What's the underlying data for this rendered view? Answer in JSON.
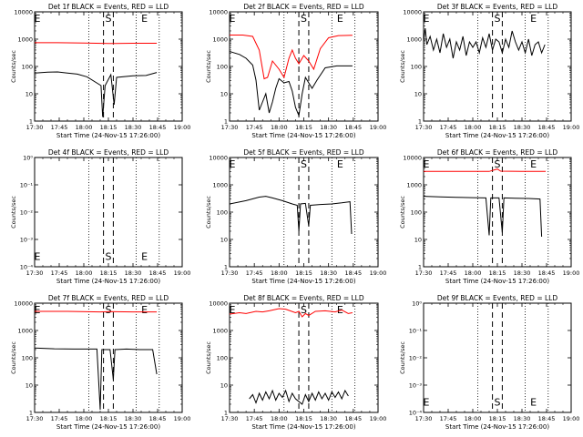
{
  "panel_titles": [
    "Det 1f BLACK = Events, RED = LLD",
    "Det 2f BLACK = Events, RED = LLD",
    "Det 3f BLACK = Events, RED = LLD",
    "Det 4f BLACK = Events, RED = LLD",
    "Det 5f BLACK = Events, RED = LLD",
    "Det 6f BLACK = Events, RED = LLD",
    "Det 7f BLACK = Events, RED = LLD",
    "Det 8f BLACK = Events, RED = LLD",
    "Det 9f BLACK = Events, RED = LLD"
  ],
  "chart_data": {
    "type": "line",
    "layout": "3x3 grid",
    "xlabel": "Start Time (24-Nov-15 17:26:00)",
    "ylabel": "Counts/sec",
    "x_ticks": [
      "17:30",
      "17:45",
      "18:00",
      "18:15",
      "18:30",
      "18:45",
      "19:00"
    ],
    "x_tick_minutes": [
      0,
      15,
      30,
      45,
      60,
      75,
      90
    ],
    "xlim_minutes": [
      0,
      90
    ],
    "y_ticks_counts": [
      "1",
      "10",
      "100",
      "1000",
      "10000"
    ],
    "y_ticks_empty": [
      "10⁰",
      "10⁻¹",
      "10⁻²",
      "10⁻³",
      "10⁻⁴"
    ],
    "vertical_lines": {
      "solid_labels": [
        "S",
        "E"
      ],
      "dashed_at_minutes": [
        42,
        48
      ],
      "dotted_at_minutes": [
        0,
        33,
        62,
        76
      ]
    },
    "series_colors": {
      "events": "#000000",
      "lld": "#ff0000"
    },
    "panels": [
      {
        "det": "1f",
        "log_range": [
          0,
          4
        ],
        "marker_S": 45,
        "marker_E": 67,
        "events": [
          [
            0,
            1.76
          ],
          [
            8,
            1.79
          ],
          [
            14,
            1.8
          ],
          [
            20,
            1.76
          ],
          [
            26,
            1.72
          ],
          [
            32,
            1.62
          ],
          [
            40.5,
            1.3
          ],
          [
            41.5,
            0.15
          ],
          [
            43,
            1.3
          ],
          [
            46.5,
            1.7
          ],
          [
            48.5,
            0.6
          ],
          [
            50,
            1.6
          ],
          [
            60,
            1.66
          ],
          [
            68,
            1.67
          ],
          [
            74.5,
            1.78
          ]
        ],
        "lld": [
          [
            0,
            2.87
          ],
          [
            14,
            2.87
          ],
          [
            30,
            2.86
          ],
          [
            45,
            2.84
          ],
          [
            60,
            2.85
          ],
          [
            74.5,
            2.85
          ]
        ]
      },
      {
        "det": "2f",
        "log_range": [
          0,
          4
        ],
        "marker_S": 45,
        "marker_E": 67,
        "events": [
          [
            0,
            2.55
          ],
          [
            6,
            2.44
          ],
          [
            10,
            2.3
          ],
          [
            14,
            2.05
          ],
          [
            16,
            1.5
          ],
          [
            18,
            0.4
          ],
          [
            20,
            0.7
          ],
          [
            22,
            1.0
          ],
          [
            24,
            0.3
          ],
          [
            26,
            0.7
          ],
          [
            28,
            1.2
          ],
          [
            30,
            1.55
          ],
          [
            33,
            1.4
          ],
          [
            36,
            1.45
          ],
          [
            38,
            1.1
          ],
          [
            40,
            0.5
          ],
          [
            42,
            0.2
          ],
          [
            44,
            1.0
          ],
          [
            46,
            1.6
          ],
          [
            48,
            1.4
          ],
          [
            50,
            1.2
          ],
          [
            53,
            1.5
          ],
          [
            58,
            1.95
          ],
          [
            65,
            2.02
          ],
          [
            74.5,
            2.02
          ]
        ],
        "lld": [
          [
            0,
            3.15
          ],
          [
            8,
            3.15
          ],
          [
            14,
            3.1
          ],
          [
            18,
            2.6
          ],
          [
            21,
            1.55
          ],
          [
            23,
            1.6
          ],
          [
            26,
            2.2
          ],
          [
            30,
            1.9
          ],
          [
            33,
            1.6
          ],
          [
            36,
            2.3
          ],
          [
            38,
            2.6
          ],
          [
            40,
            2.3
          ],
          [
            42,
            2.1
          ],
          [
            45,
            2.4
          ],
          [
            48,
            2.2
          ],
          [
            51,
            1.9
          ],
          [
            55,
            2.65
          ],
          [
            60,
            3.05
          ],
          [
            66,
            3.13
          ],
          [
            74.5,
            3.14
          ]
        ]
      },
      {
        "det": "3f",
        "log_range": [
          0,
          4
        ],
        "marker_S": 45,
        "marker_E": 67,
        "events": [
          [
            0,
            2.9
          ],
          [
            1,
            3.4
          ],
          [
            2,
            2.8
          ],
          [
            4,
            3.1
          ],
          [
            6,
            2.6
          ],
          [
            8,
            3.0
          ],
          [
            10,
            2.5
          ],
          [
            12,
            3.2
          ],
          [
            14,
            2.7
          ],
          [
            16,
            3.0
          ],
          [
            18,
            2.3
          ],
          [
            20,
            2.9
          ],
          [
            22,
            2.6
          ],
          [
            24,
            3.1
          ],
          [
            26,
            2.4
          ],
          [
            28,
            2.9
          ],
          [
            30,
            2.7
          ],
          [
            32,
            2.9
          ],
          [
            34,
            2.5
          ],
          [
            36,
            3.05
          ],
          [
            38,
            2.7
          ],
          [
            40,
            3.2
          ],
          [
            42,
            2.6
          ],
          [
            44,
            3.0
          ],
          [
            46,
            2.9
          ],
          [
            48,
            2.5
          ],
          [
            50,
            3.0
          ],
          [
            52,
            2.7
          ],
          [
            54,
            3.3
          ],
          [
            56,
            2.9
          ],
          [
            58,
            2.6
          ],
          [
            60,
            2.9
          ],
          [
            62,
            2.5
          ],
          [
            64,
            3.0
          ],
          [
            66,
            2.4
          ],
          [
            68,
            2.8
          ],
          [
            70,
            2.9
          ],
          [
            72,
            2.5
          ],
          [
            74,
            2.8
          ]
        ],
        "lld": []
      },
      {
        "det": "4f",
        "log_range": [
          -4,
          0
        ],
        "marker_S": 45,
        "marker_E": 67,
        "events": [],
        "lld": []
      },
      {
        "det": "5f",
        "log_range": [
          0,
          4
        ],
        "marker_S": 45,
        "marker_E": 67,
        "events": [
          [
            0,
            2.3
          ],
          [
            10,
            2.42
          ],
          [
            18,
            2.55
          ],
          [
            22,
            2.58
          ],
          [
            26,
            2.52
          ],
          [
            32,
            2.42
          ],
          [
            38,
            2.3
          ],
          [
            41,
            2.25
          ],
          [
            42,
            1.3
          ],
          [
            43,
            2.3
          ],
          [
            46,
            2.32
          ],
          [
            48,
            1.5
          ],
          [
            49,
            2.25
          ],
          [
            55,
            2.28
          ],
          [
            62,
            2.3
          ],
          [
            68,
            2.34
          ],
          [
            73,
            2.38
          ],
          [
            74,
            1.2
          ]
        ],
        "lld": []
      },
      {
        "det": "6f",
        "log_range": [
          0,
          4
        ],
        "marker_S": 45,
        "marker_E": 67,
        "events": [
          [
            0,
            2.58
          ],
          [
            10,
            2.56
          ],
          [
            20,
            2.54
          ],
          [
            30,
            2.53
          ],
          [
            38,
            2.52
          ],
          [
            40,
            1.15
          ],
          [
            41,
            2.52
          ],
          [
            46,
            2.52
          ],
          [
            48,
            1.25
          ],
          [
            49,
            2.52
          ],
          [
            56,
            2.51
          ],
          [
            64,
            2.5
          ],
          [
            71,
            2.48
          ],
          [
            72,
            1.1
          ]
        ],
        "lld": [
          [
            0,
            3.49
          ],
          [
            20,
            3.49
          ],
          [
            40,
            3.49
          ],
          [
            45,
            3.58
          ],
          [
            47,
            3.5
          ],
          [
            60,
            3.49
          ],
          [
            74.5,
            3.49
          ]
        ]
      },
      {
        "det": "7f",
        "log_range": [
          0,
          4
        ],
        "marker_S": 45,
        "marker_E": 67,
        "events": [
          [
            0,
            2.36
          ],
          [
            12,
            2.33
          ],
          [
            24,
            2.32
          ],
          [
            38,
            2.32
          ],
          [
            40,
            0.1
          ],
          [
            41,
            2.3
          ],
          [
            46,
            2.3
          ],
          [
            48,
            1.2
          ],
          [
            49,
            2.3
          ],
          [
            56,
            2.32
          ],
          [
            64,
            2.3
          ],
          [
            72,
            2.3
          ],
          [
            74.5,
            1.4
          ]
        ],
        "lld": [
          [
            0,
            3.7
          ],
          [
            20,
            3.7
          ],
          [
            40,
            3.68
          ],
          [
            46,
            3.69
          ],
          [
            60,
            3.68
          ],
          [
            74.5,
            3.68
          ]
        ]
      },
      {
        "det": "8f",
        "log_range": [
          0,
          4
        ],
        "marker_S": 45,
        "marker_E": 67,
        "events": [
          [
            12,
            0.5
          ],
          [
            14,
            0.65
          ],
          [
            16,
            0.35
          ],
          [
            18,
            0.7
          ],
          [
            20,
            0.45
          ],
          [
            22,
            0.75
          ],
          [
            24,
            0.5
          ],
          [
            26,
            0.8
          ],
          [
            28,
            0.45
          ],
          [
            30,
            0.7
          ],
          [
            32,
            0.55
          ],
          [
            34,
            0.8
          ],
          [
            36,
            0.4
          ],
          [
            38,
            0.7
          ],
          [
            40,
            0.5
          ],
          [
            44,
            0.3
          ],
          [
            46,
            0.65
          ],
          [
            48,
            0.4
          ],
          [
            50,
            0.7
          ],
          [
            52,
            0.45
          ],
          [
            54,
            0.75
          ],
          [
            56,
            0.5
          ],
          [
            58,
            0.7
          ],
          [
            60,
            0.45
          ],
          [
            62,
            0.75
          ],
          [
            64,
            0.55
          ],
          [
            66,
            0.75
          ],
          [
            68,
            0.5
          ],
          [
            70,
            0.8
          ],
          [
            72,
            0.6
          ]
        ],
        "lld": [
          [
            0,
            3.6
          ],
          [
            6,
            3.65
          ],
          [
            10,
            3.62
          ],
          [
            16,
            3.7
          ],
          [
            20,
            3.68
          ],
          [
            24,
            3.72
          ],
          [
            30,
            3.8
          ],
          [
            34,
            3.78
          ],
          [
            40,
            3.65
          ],
          [
            42,
            3.7
          ],
          [
            44,
            3.5
          ],
          [
            46,
            3.62
          ],
          [
            48,
            3.55
          ],
          [
            52,
            3.7
          ],
          [
            58,
            3.72
          ],
          [
            64,
            3.68
          ],
          [
            68,
            3.75
          ],
          [
            72,
            3.62
          ],
          [
            74.5,
            3.65
          ]
        ]
      },
      {
        "det": "9f",
        "log_range": [
          -4,
          0
        ],
        "marker_S": 45,
        "marker_E": 67,
        "events": [],
        "lld": []
      }
    ]
  }
}
